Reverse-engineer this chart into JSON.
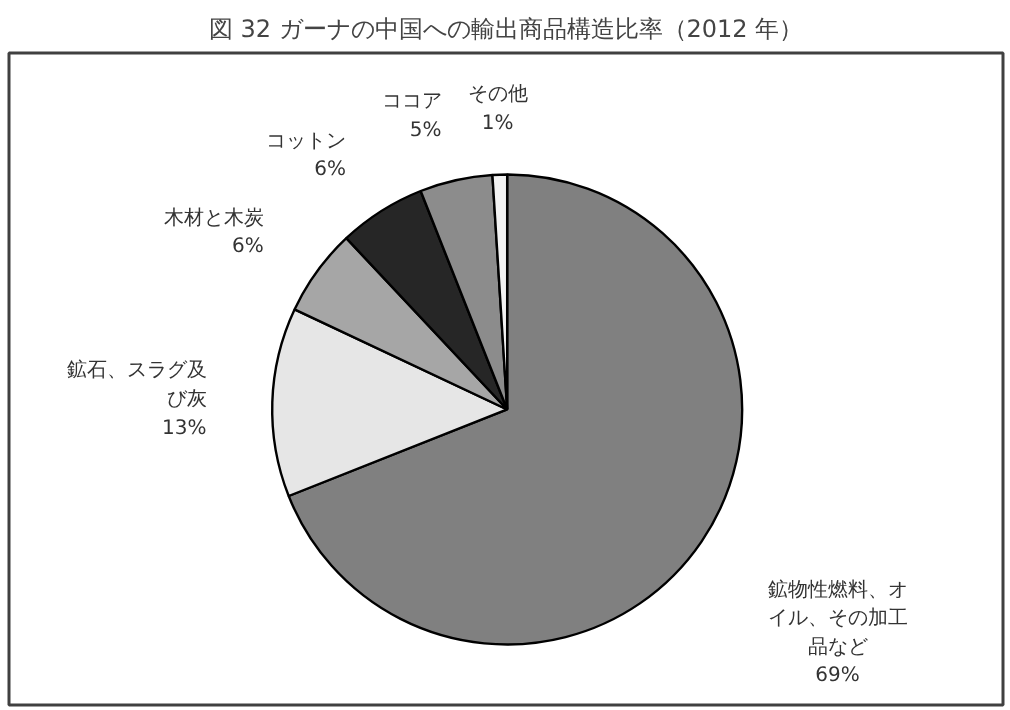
{
  "chart_data": {
    "type": "pie",
    "title": "図 32 ガーナの中国への輸出商品構造比率（2012 年）",
    "categories": [
      "鉱物性燃料、オイル、その加工品など",
      "鉱石、スラグ及び灰",
      "木材と木炭",
      "コットン",
      "ココア",
      "その他"
    ],
    "values": [
      69,
      13,
      6,
      6,
      5,
      1
    ],
    "value_labels": [
      "69%",
      "13%",
      "6%",
      "6%",
      "5%",
      "1%"
    ],
    "colors": [
      "#808080",
      "#e6e6e6",
      "#a6a6a6",
      "#262626",
      "#8c8c8c",
      "#f2f2f2"
    ],
    "legend": false
  }
}
